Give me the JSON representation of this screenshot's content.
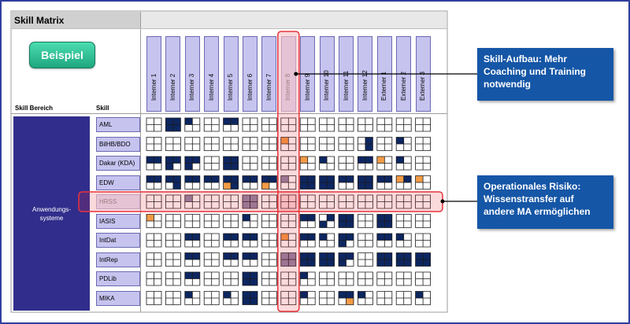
{
  "title": "Skill Matrix",
  "badge": "Beispiel",
  "headers": {
    "bereich": "Skill Bereich",
    "skill": "Skill"
  },
  "bereich": "Anwendungs-\nsysteme",
  "highlight_person": "Interner 8",
  "highlight_skill": "HRSS",
  "callouts": {
    "top": "Skill-Aufbau: Mehr Coaching und Training notwendig",
    "bottom": "Operationales Risiko: Wissenstransfer auf andere MA ermöglichen"
  },
  "colors": {
    "frame": "#2f3f9e",
    "navy": "#0d2660",
    "orange": "#f29b46",
    "purple": "#c6c3ef",
    "bereich": "#312d8c",
    "callout": "#1556a6",
    "highlight": "#e8333b",
    "grey": "#8d85a8"
  },
  "people": [
    "Interner 1",
    "Interner 2",
    "Interner 3",
    "Interner 4",
    "Interner 5",
    "Interner 6",
    "Interner 7",
    "Interner 8",
    "Interner 9",
    "Interner 10",
    "Interner 11",
    "Interner 12",
    "Externer 1",
    "Externer 2",
    "Externer 3"
  ],
  "skills": [
    {
      "name": "AML",
      "cells": [
        "0000",
        "1111",
        "1000",
        "0000",
        "1100",
        "0000",
        "0000",
        "0000",
        "0000",
        "0000",
        "0000",
        "0000",
        "0000",
        "0000",
        "0000"
      ]
    },
    {
      "name": "BilHB/BDO",
      "cells": [
        "0000",
        "0000",
        "0000",
        "0000",
        "0000",
        "0000",
        "0000",
        "2000",
        "0000",
        "0000",
        "0000",
        "0101",
        "0000",
        "1000",
        "0000"
      ]
    },
    {
      "name": "Dakar (KDA)",
      "cells": [
        "1100",
        "1110",
        "1110",
        "0000",
        "1111",
        "0000",
        "0000",
        "0000",
        "2000",
        "1000",
        "0000",
        "1100",
        "2000",
        "1000",
        "0000"
      ]
    },
    {
      "name": "EDW",
      "cells": [
        "1100",
        "1101",
        "1100",
        "1100",
        "1121",
        "1100",
        "1120",
        "1000",
        "1111",
        "1111",
        "1100",
        "1111",
        "1100",
        "2100",
        "2000"
      ]
    },
    {
      "name": "HRSS",
      "cells": [
        "0000",
        "0000",
        "1000",
        "0000",
        "0000",
        "1111",
        "0000",
        "0000",
        "0000",
        "0000",
        "0000",
        "0000",
        "0000",
        "0000",
        "0000"
      ]
    },
    {
      "name": "IASIS",
      "cells": [
        "2000",
        "0000",
        "0000",
        "0000",
        "0000",
        "1000",
        "0000",
        "0000",
        "1100",
        "0110",
        "1111",
        "0000",
        "1111",
        "0000",
        "0000"
      ]
    },
    {
      "name": "IntDat",
      "cells": [
        "0000",
        "0000",
        "1100",
        "0000",
        "1100",
        "1100",
        "0000",
        "2000",
        "1100",
        "1000",
        "1110",
        "0000",
        "1100",
        "1000",
        "0000"
      ]
    },
    {
      "name": "IntRep",
      "cells": [
        "0000",
        "0000",
        "1100",
        "0000",
        "1100",
        "1100",
        "0000",
        "1111",
        "1111",
        "1111",
        "1110",
        "0000",
        "1111",
        "1111",
        "1111"
      ]
    },
    {
      "name": "PDLib",
      "cells": [
        "0000",
        "0000",
        "1100",
        "0000",
        "0000",
        "1111",
        "0000",
        "0000",
        "1000",
        "0000",
        "0000",
        "0000",
        "0000",
        "0000",
        "0000"
      ]
    },
    {
      "name": "MIKA",
      "cells": [
        "0000",
        "0000",
        "1000",
        "0000",
        "1000",
        "1111",
        "0000",
        "0000",
        "1000",
        "0000",
        "1102",
        "1000",
        "0000",
        "0000",
        "1000"
      ]
    }
  ]
}
